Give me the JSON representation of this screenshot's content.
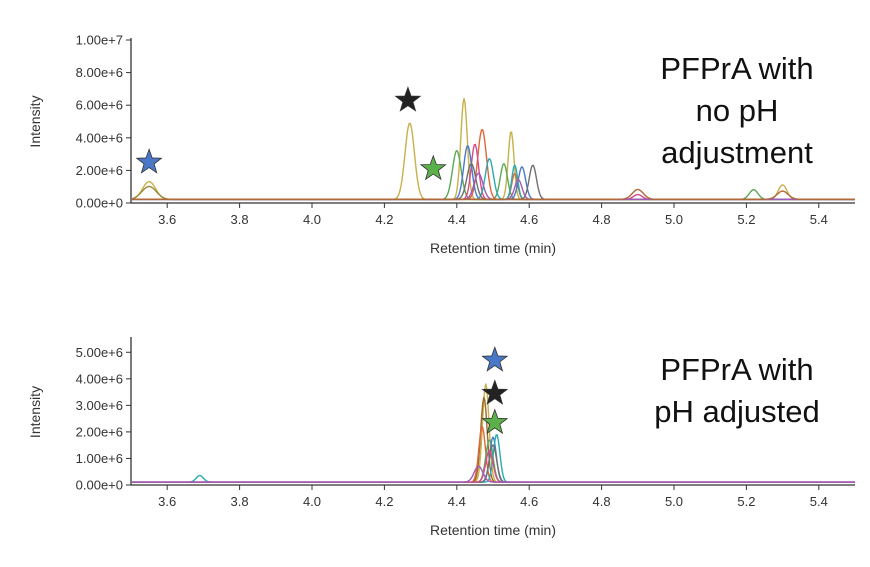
{
  "chart_data": [
    {
      "type": "line",
      "annotation_lines": [
        "PFPrA with",
        "no pH",
        "adjustment"
      ],
      "xlabel": "Retention time (min)",
      "ylabel": "Intensity",
      "xlim": [
        3.5,
        5.5
      ],
      "ylim": [
        0,
        10000000
      ],
      "x_ticks": [
        3.6,
        3.8,
        4.0,
        4.2,
        4.4,
        4.6,
        4.8,
        5.0,
        5.2,
        5.4
      ],
      "x_tick_labels": [
        "3.6",
        "3.8",
        "4.0",
        "4.2",
        "4.4",
        "4.6",
        "4.8",
        "5.0",
        "5.2",
        "5.4"
      ],
      "y_ticks": [
        0,
        2000000,
        4000000,
        6000000,
        8000000,
        10000000
      ],
      "y_tick_labels": [
        "0.00e+0",
        "2.00e+6",
        "4.00e+6",
        "6.00e+6",
        "8.00e+6",
        "1.00e+7"
      ],
      "grid": false,
      "baseline": 250000,
      "series": [
        {
          "color": "#c8b04a",
          "peaks": [
            [
              3.55,
              1100000,
              0.018
            ],
            [
              4.27,
              4700000,
              0.013
            ],
            [
              4.42,
              6200000,
              0.009
            ],
            [
              4.55,
              4200000,
              0.008
            ],
            [
              5.3,
              900000,
              0.012
            ]
          ]
        },
        {
          "color": "#9b8a3c",
          "peaks": [
            [
              3.55,
              800000,
              0.02
            ]
          ]
        },
        {
          "color": "#5aaa55",
          "peaks": [
            [
              4.4,
              3000000,
              0.012
            ],
            [
              4.53,
              2200000,
              0.01
            ],
            [
              5.22,
              600000,
              0.012
            ]
          ]
        },
        {
          "color": "#e0663a",
          "peaks": [
            [
              4.47,
              4300000,
              0.012
            ],
            [
              4.56,
              1600000,
              0.008
            ]
          ]
        },
        {
          "color": "#d94a8a",
          "peaks": [
            [
              4.45,
              3400000,
              0.01
            ],
            [
              4.9,
              300000,
              0.012
            ]
          ]
        },
        {
          "color": "#4a7ac8",
          "peaks": [
            [
              4.43,
              3300000,
              0.011
            ],
            [
              4.58,
              2000000,
              0.01
            ]
          ]
        },
        {
          "color": "#2aaab0",
          "peaks": [
            [
              4.49,
              2500000,
              0.011
            ],
            [
              4.56,
              2100000,
              0.008
            ]
          ]
        },
        {
          "color": "#707070",
          "peaks": [
            [
              4.44,
              2200000,
              0.012
            ],
            [
              4.61,
              2100000,
              0.01
            ]
          ]
        },
        {
          "color": "#a05ab8",
          "peaks": [
            [
              4.46,
              1600000,
              0.012
            ],
            [
              4.57,
              1200000,
              0.01
            ]
          ]
        },
        {
          "color": "#b06a3a",
          "peaks": [
            [
              4.9,
              600000,
              0.015
            ],
            [
              5.3,
              500000,
              0.015
            ]
          ]
        }
      ],
      "markers": [
        {
          "label": "blue-star",
          "x": 3.55,
          "y": 2500000,
          "color": "#4a78c8"
        },
        {
          "label": "black-star",
          "x": 4.265,
          "y": 6300000,
          "color": "#222222"
        },
        {
          "label": "green-star",
          "x": 4.335,
          "y": 2100000,
          "color": "#5bb04a"
        }
      ]
    },
    {
      "type": "line",
      "annotation_lines": [
        "PFPrA with",
        "pH adjusted"
      ],
      "xlabel": "Retention time (min)",
      "ylabel": "Intensity",
      "xlim": [
        3.5,
        5.5
      ],
      "ylim": [
        0,
        5500000
      ],
      "x_ticks": [
        3.6,
        3.8,
        4.0,
        4.2,
        4.4,
        4.6,
        4.8,
        5.0,
        5.2,
        5.4
      ],
      "x_tick_labels": [
        "3.6",
        "3.8",
        "4.0",
        "4.2",
        "4.4",
        "4.6",
        "4.8",
        "5.0",
        "5.2",
        "5.4"
      ],
      "y_ticks": [
        0,
        1000000,
        2000000,
        3000000,
        4000000,
        5000000
      ],
      "y_tick_labels": [
        "0.00e+0",
        "1.00e+6",
        "2.00e+6",
        "3.00e+6",
        "4.00e+6",
        "5.00e+6"
      ],
      "grid": false,
      "baseline": 120000,
      "series": [
        {
          "color": "#c8b04a",
          "peaks": [
            [
              4.48,
              3700000,
              0.009
            ]
          ]
        },
        {
          "color": "#9b6a2a",
          "peaks": [
            [
              4.475,
              3200000,
              0.009
            ]
          ]
        },
        {
          "color": "#e0663a",
          "peaks": [
            [
              4.47,
              2100000,
              0.009
            ]
          ]
        },
        {
          "color": "#5aaa55",
          "peaks": [
            [
              4.49,
              1600000,
              0.01
            ]
          ]
        },
        {
          "color": "#4a7ac8",
          "peaks": [
            [
              4.5,
              1700000,
              0.009
            ]
          ]
        },
        {
          "color": "#2aaab0",
          "peaks": [
            [
              4.51,
              1800000,
              0.009
            ],
            [
              3.69,
              250000,
              0.01
            ]
          ]
        },
        {
          "color": "#707070",
          "peaks": [
            [
              4.5,
              1400000,
              0.01
            ]
          ]
        },
        {
          "color": "#d94a8a",
          "peaks": [
            [
              4.49,
              1200000,
              0.01
            ]
          ]
        },
        {
          "color": "#a05ab8",
          "peaks": [
            [
              4.46,
              600000,
              0.012
            ]
          ]
        }
      ],
      "markers": [
        {
          "label": "blue-star",
          "x": 4.505,
          "y": 4700000,
          "color": "#4a78c8"
        },
        {
          "label": "black-star",
          "x": 4.505,
          "y": 3450000,
          "color": "#222222"
        },
        {
          "label": "green-star",
          "x": 4.505,
          "y": 2350000,
          "color": "#5bb04a"
        }
      ]
    }
  ]
}
